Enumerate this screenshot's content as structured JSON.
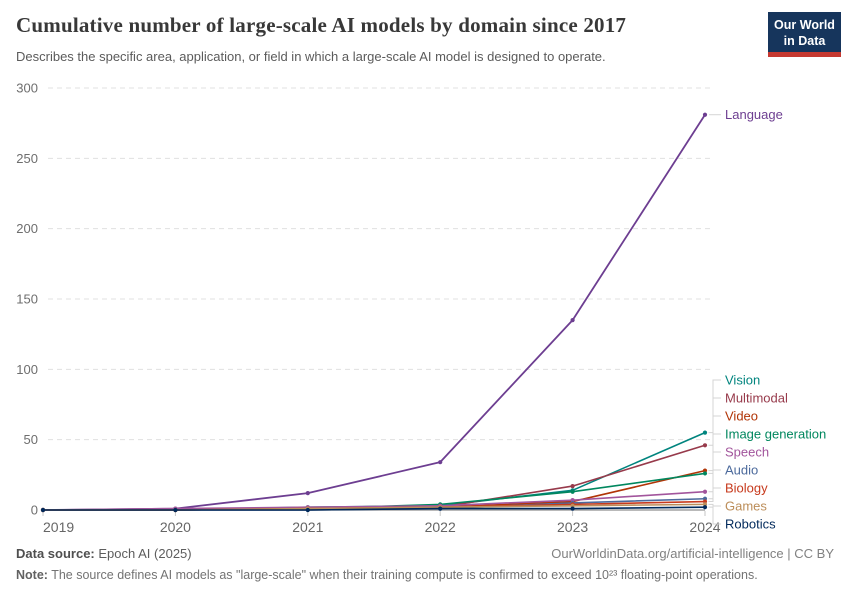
{
  "header": {
    "title": "Cumulative number of large-scale AI models by domain since 2017",
    "subtitle": "Describes the specific area, application, or field in which a large-scale AI model is designed to operate.",
    "logo_line1": "Our World",
    "logo_line2": "in Data",
    "logo_bg_color": "#16355C",
    "logo_accent_color": "#C63931"
  },
  "footer": {
    "data_source_label": "Data source:",
    "data_source_value": "Epoch AI (2025)",
    "attribution": "OurWorldinData.org/artificial-intelligence | CC BY",
    "note_label": "Note:",
    "note_value": "The source defines AI models as \"large-scale\" when their training compute is confirmed to exceed 10²³ floating-point operations."
  },
  "chart_data": {
    "type": "line",
    "title": "Cumulative number of large-scale AI models by domain since 2017",
    "xlabel": "",
    "ylabel": "",
    "x": [
      "2019",
      "2020",
      "2021",
      "2022",
      "2023",
      "2024"
    ],
    "ylim": [
      0,
      300
    ],
    "yticks": [
      0,
      50,
      100,
      150,
      200,
      250,
      300
    ],
    "grid": "horizontal-dashed",
    "legend_position": "right-edge-labels",
    "marker": "point-per-year",
    "series": [
      {
        "name": "Language",
        "color": "#6D3E91",
        "values": [
          0,
          1,
          12,
          34,
          135,
          281
        ]
      },
      {
        "name": "Vision",
        "color": "#00847E",
        "values": [
          0,
          0,
          2,
          3,
          14,
          55
        ]
      },
      {
        "name": "Multimodal",
        "color": "#973A4B",
        "values": [
          0,
          0,
          1,
          2,
          17,
          46
        ]
      },
      {
        "name": "Video",
        "color": "#B13507",
        "values": [
          0,
          0,
          1,
          2,
          6,
          28
        ]
      },
      {
        "name": "Image generation",
        "color": "#00875E",
        "values": [
          0,
          0,
          1,
          4,
          13,
          26
        ]
      },
      {
        "name": "Speech",
        "color": "#A2559C",
        "values": [
          0,
          1,
          2,
          3,
          7,
          13
        ]
      },
      {
        "name": "Audio",
        "color": "#4C6A9C",
        "values": [
          0,
          0,
          0,
          1,
          5,
          8
        ]
      },
      {
        "name": "Biology",
        "color": "#C73A1D",
        "values": [
          0,
          0,
          1,
          2,
          4,
          6
        ]
      },
      {
        "name": "Games",
        "color": "#BC8E5A",
        "values": [
          0,
          0,
          1,
          2,
          3,
          4
        ]
      },
      {
        "name": "Robotics",
        "color": "#00295B",
        "values": [
          0,
          0,
          0,
          1,
          1,
          2
        ]
      }
    ]
  }
}
